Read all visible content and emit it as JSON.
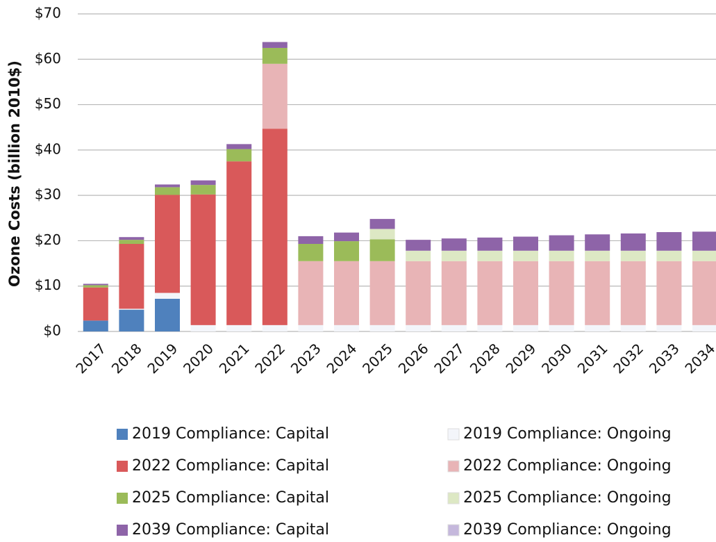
{
  "chart_data": {
    "type": "stacked_bar",
    "y_label": "Ozone Costs (billion 2010$)",
    "categories": [
      "2017",
      "2018",
      "2019",
      "2020",
      "2021",
      "2022",
      "2023",
      "2024",
      "2025",
      "2026",
      "2027",
      "2028",
      "2029",
      "2030",
      "2031",
      "2032",
      "2033",
      "2034"
    ],
    "series": [
      {
        "name": "2019 Compliance: Capital",
        "color": "#4f81bd",
        "values": [
          2.4,
          4.8,
          7.2,
          0,
          0,
          0,
          0,
          0,
          0,
          0,
          0,
          0,
          0,
          0,
          0,
          0,
          0,
          0
        ]
      },
      {
        "name": "2019 Compliance: Ongoing",
        "color": "#f3f5fa",
        "values": [
          0,
          0.2,
          1.3,
          1.4,
          1.4,
          1.4,
          1.4,
          1.4,
          1.4,
          1.4,
          1.4,
          1.4,
          1.4,
          1.4,
          1.4,
          1.4,
          1.4,
          1.4
        ]
      },
      {
        "name": "2022 Compliance: Capital",
        "color": "#d9595a",
        "values": [
          7.3,
          14.3,
          21.6,
          28.8,
          36.1,
          43.3,
          0,
          0,
          0,
          0,
          0,
          0,
          0,
          0,
          0,
          0,
          0,
          0
        ]
      },
      {
        "name": "2022 Compliance: Ongoing",
        "color": "#e8b4b6",
        "values": [
          0,
          0,
          0,
          0,
          0,
          14.3,
          14.1,
          14.1,
          14.1,
          14.1,
          14.1,
          14.1,
          14.1,
          14.1,
          14.1,
          14.1,
          14.1,
          14.1
        ]
      },
      {
        "name": "2025 Compliance: Capital",
        "color": "#9bbb59",
        "values": [
          0.5,
          0.9,
          1.7,
          2.1,
          2.7,
          3.5,
          3.8,
          4.4,
          4.8,
          0,
          0,
          0,
          0,
          0,
          0,
          0,
          0,
          0
        ]
      },
      {
        "name": "2025 Compliance: Ongoing",
        "color": "#dde8c4",
        "values": [
          0,
          0,
          0,
          0,
          0,
          0,
          0,
          0,
          2.3,
          2.3,
          2.3,
          2.3,
          2.3,
          2.3,
          2.3,
          2.3,
          2.3,
          2.3
        ]
      },
      {
        "name": "2039 Compliance: Capital",
        "color": "#8e64a8",
        "values": [
          0.3,
          0.6,
          0.6,
          1.0,
          1.1,
          1.3,
          1.7,
          1.9,
          2.2,
          2.4,
          2.7,
          2.9,
          3.1,
          3.4,
          3.6,
          3.8,
          4.1,
          4.2
        ]
      },
      {
        "name": "2039 Compliance: Ongoing",
        "color": "#c5b8dc",
        "values": [
          0,
          0,
          0,
          0,
          0,
          0,
          0,
          0,
          0,
          0,
          0,
          0,
          0,
          0,
          0,
          0,
          0,
          0
        ]
      }
    ],
    "ylim": [
      0,
      70
    ],
    "yticks": [
      {
        "value": 0,
        "label": "$0"
      },
      {
        "value": 10,
        "label": "$10"
      },
      {
        "value": 20,
        "label": "$20"
      },
      {
        "value": 30,
        "label": "$30"
      },
      {
        "value": 40,
        "label": "$40"
      },
      {
        "value": 50,
        "label": "$50"
      },
      {
        "value": 60,
        "label": "$60"
      },
      {
        "value": 70,
        "label": "$70"
      }
    ],
    "grid": true
  }
}
